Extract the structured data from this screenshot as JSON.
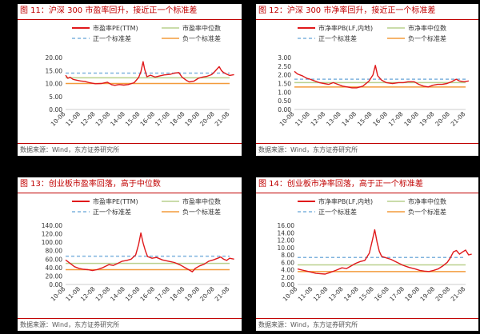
{
  "colors": {
    "series": "#e0191b",
    "median": "#b9d08d",
    "plus_sd": "#7fb3de",
    "minus_sd": "#f39b3c",
    "title": "#c00000"
  },
  "panels": [
    {
      "title": "图 11：沪深 300 市盈率回升，接近正一个标准差",
      "source": "数据来源：Wind，东方证券研究所"
    },
    {
      "title": "图 12：沪深 300 市净率回升，接近正一个标准差",
      "source": "数据来源：Wind，东方证券研究所"
    },
    {
      "title": "图 13：创业板市盈率回落，高于中位数",
      "source": "数据来源：Wind，东方证券研究所"
    },
    {
      "title": "图 14：创业板市净率回落，高于正一个标准差",
      "source": "数据来源：Wind，东方证券研究所"
    }
  ],
  "chart_data": [
    {
      "type": "line",
      "x": [
        "10-08",
        "11-08",
        "12-08",
        "13-08",
        "14-08",
        "15-08",
        "16-08",
        "17-08",
        "18-08",
        "19-08",
        "20-08",
        "21-08"
      ],
      "ylim": [
        0,
        20
      ],
      "yticks": [
        "0.00",
        "5.00",
        "10.00",
        "15.00",
        "20.00"
      ],
      "legend": [
        "市盈率PE(TTM)",
        "市盈率中位数",
        "正一个标准差",
        "负一个标准差"
      ],
      "series_points": [
        [
          0,
          13.2
        ],
        [
          0.15,
          12
        ],
        [
          0.3,
          12.4
        ],
        [
          0.5,
          11.6
        ],
        [
          0.8,
          11.2
        ],
        [
          1,
          11
        ],
        [
          1.3,
          10.8
        ],
        [
          1.6,
          10.3
        ],
        [
          2,
          9.9
        ],
        [
          2.4,
          10
        ],
        [
          2.8,
          10.5
        ],
        [
          3.1,
          9.5
        ],
        [
          3.3,
          9.3
        ],
        [
          3.6,
          9.6
        ],
        [
          3.9,
          9.4
        ],
        [
          4.2,
          9.6
        ],
        [
          4.6,
          10.3
        ],
        [
          4.9,
          12.3
        ],
        [
          5.05,
          14.5
        ],
        [
          5.2,
          18.4
        ],
        [
          5.3,
          15.5
        ],
        [
          5.45,
          12.6
        ],
        [
          5.7,
          13.2
        ],
        [
          6,
          12.5
        ],
        [
          6.3,
          12.9
        ],
        [
          6.6,
          13.3
        ],
        [
          7,
          13.5
        ],
        [
          7.3,
          14
        ],
        [
          7.6,
          14.2
        ],
        [
          7.8,
          12.5
        ],
        [
          8.1,
          11.2
        ],
        [
          8.3,
          10.6
        ],
        [
          8.6,
          10.9
        ],
        [
          8.9,
          12
        ],
        [
          9.2,
          12.5
        ],
        [
          9.5,
          12.8
        ],
        [
          9.8,
          13.4
        ],
        [
          10,
          14.6
        ],
        [
          10.3,
          16.5
        ],
        [
          10.45,
          15
        ],
        [
          10.6,
          14.2
        ],
        [
          10.8,
          13.6
        ],
        [
          11,
          13.1
        ],
        [
          11.3,
          13.4
        ]
      ],
      "median": 12.2,
      "plus_sd": 14.0,
      "minus_sd": 10.0
    },
    {
      "type": "line",
      "x": [
        "10-08",
        "11-08",
        "12-08",
        "13-08",
        "14-08",
        "15-08",
        "16-08",
        "17-08",
        "18-08",
        "19-08",
        "20-08",
        "21-08"
      ],
      "ylim": [
        0,
        3
      ],
      "yticks": [
        "0.00",
        "0.50",
        "1.00",
        "1.50",
        "2.00",
        "2.50",
        "3.00"
      ],
      "legend": [
        "市净率PB(LF,内地)",
        "市净率中位数",
        "正一个标准差",
        "负一个标准差"
      ],
      "series_points": [
        [
          0,
          2.2
        ],
        [
          0.2,
          2.05
        ],
        [
          0.5,
          1.95
        ],
        [
          0.8,
          1.8
        ],
        [
          1,
          1.75
        ],
        [
          1.3,
          1.65
        ],
        [
          1.6,
          1.55
        ],
        [
          1.9,
          1.5
        ],
        [
          2.2,
          1.45
        ],
        [
          2.5,
          1.55
        ],
        [
          2.8,
          1.45
        ],
        [
          3.1,
          1.35
        ],
        [
          3.4,
          1.3
        ],
        [
          3.7,
          1.25
        ],
        [
          4,
          1.25
        ],
        [
          4.4,
          1.35
        ],
        [
          4.8,
          1.65
        ],
        [
          5.05,
          2.0
        ],
        [
          5.2,
          2.55
        ],
        [
          5.35,
          1.95
        ],
        [
          5.6,
          1.7
        ],
        [
          5.9,
          1.55
        ],
        [
          6.3,
          1.5
        ],
        [
          6.7,
          1.55
        ],
        [
          7,
          1.55
        ],
        [
          7.3,
          1.6
        ],
        [
          7.7,
          1.6
        ],
        [
          8,
          1.45
        ],
        [
          8.3,
          1.35
        ],
        [
          8.6,
          1.3
        ],
        [
          8.9,
          1.4
        ],
        [
          9.2,
          1.45
        ],
        [
          9.5,
          1.45
        ],
        [
          9.8,
          1.5
        ],
        [
          10.1,
          1.6
        ],
        [
          10.4,
          1.75
        ],
        [
          10.6,
          1.65
        ],
        [
          10.9,
          1.6
        ],
        [
          11.2,
          1.65
        ]
      ],
      "median": 1.55,
      "plus_sd": 1.75,
      "minus_sd": 1.3
    },
    {
      "type": "line",
      "x": [
        "10-08",
        "11-08",
        "12-08",
        "13-08",
        "14-08",
        "15-08",
        "16-08",
        "17-08",
        "18-08",
        "19-08",
        "20-08",
        "21-08"
      ],
      "ylim": [
        0,
        140
      ],
      "yticks": [
        "0.00",
        "20.00",
        "40.00",
        "60.00",
        "80.00",
        "100.00",
        "120.00",
        "140.00"
      ],
      "legend": [
        "市盈率PE(TTM)",
        "市盈率中位数",
        "正一个标准差",
        "负一个标准差"
      ],
      "series_points": [
        [
          0,
          58
        ],
        [
          0.3,
          50
        ],
        [
          0.6,
          42
        ],
        [
          0.9,
          38
        ],
        [
          1.2,
          36
        ],
        [
          1.5,
          35
        ],
        [
          1.8,
          33
        ],
        [
          2.1,
          35
        ],
        [
          2.5,
          40
        ],
        [
          2.9,
          47
        ],
        [
          3.2,
          45
        ],
        [
          3.5,
          50
        ],
        [
          3.8,
          55
        ],
        [
          4.1,
          57
        ],
        [
          4.4,
          60
        ],
        [
          4.7,
          70
        ],
        [
          4.9,
          95
        ],
        [
          5.05,
          122
        ],
        [
          5.2,
          98
        ],
        [
          5.35,
          80
        ],
        [
          5.5,
          66
        ],
        [
          5.8,
          62
        ],
        [
          6.1,
          64
        ],
        [
          6.5,
          58
        ],
        [
          6.9,
          55
        ],
        [
          7.3,
          52
        ],
        [
          7.7,
          46
        ],
        [
          8,
          40
        ],
        [
          8.3,
          34
        ],
        [
          8.5,
          30
        ],
        [
          8.7,
          38
        ],
        [
          9,
          44
        ],
        [
          9.3,
          48
        ],
        [
          9.6,
          55
        ],
        [
          9.9,
          58
        ],
        [
          10.2,
          62
        ],
        [
          10.4,
          65
        ],
        [
          10.6,
          60
        ],
        [
          10.8,
          57
        ],
        [
          11,
          62
        ],
        [
          11.3,
          60
        ]
      ],
      "median": 50,
      "plus_sd": 67,
      "minus_sd": 35
    },
    {
      "type": "line",
      "x": [
        "10-08",
        "11-08",
        "12-08",
        "13-08",
        "14-08",
        "15-08",
        "16-08",
        "17-08",
        "18-08",
        "19-08",
        "20-08",
        "21-08"
      ],
      "ylim": [
        0,
        16
      ],
      "yticks": [
        "0.00",
        "2.00",
        "4.00",
        "6.00",
        "8.00",
        "10.00",
        "12.00",
        "14.00",
        "16.00"
      ],
      "legend": [
        "市净率PB(LF,内地)",
        "市净率中位数",
        "正一个标准差",
        "负一个标准差"
      ],
      "series_points": [
        [
          0,
          4.2
        ],
        [
          0.3,
          3.9
        ],
        [
          0.6,
          3.6
        ],
        [
          0.9,
          3.3
        ],
        [
          1.2,
          3.0
        ],
        [
          1.5,
          2.9
        ],
        [
          1.8,
          2.8
        ],
        [
          2.1,
          3.2
        ],
        [
          2.5,
          3.8
        ],
        [
          2.9,
          4.5
        ],
        [
          3.2,
          4.3
        ],
        [
          3.5,
          5
        ],
        [
          3.8,
          5.7
        ],
        [
          4.1,
          6.2
        ],
        [
          4.4,
          6.5
        ],
        [
          4.7,
          8.5
        ],
        [
          4.9,
          12
        ],
        [
          5.05,
          14.8
        ],
        [
          5.2,
          11.5
        ],
        [
          5.35,
          9
        ],
        [
          5.5,
          7.6
        ],
        [
          5.8,
          7.2
        ],
        [
          6.1,
          6.8
        ],
        [
          6.5,
          6.0
        ],
        [
          6.9,
          5.2
        ],
        [
          7.3,
          4.6
        ],
        [
          7.7,
          4.2
        ],
        [
          8,
          3.8
        ],
        [
          8.3,
          3.6
        ],
        [
          8.6,
          3.5
        ],
        [
          8.9,
          3.8
        ],
        [
          9.2,
          4.2
        ],
        [
          9.5,
          5
        ],
        [
          9.8,
          6
        ],
        [
          10,
          7.2
        ],
        [
          10.2,
          8.8
        ],
        [
          10.4,
          9.2
        ],
        [
          10.6,
          8.2
        ],
        [
          10.8,
          8.8
        ],
        [
          11,
          9.3
        ],
        [
          11.2,
          8
        ],
        [
          11.4,
          8.2
        ]
      ],
      "median": 5.3,
      "plus_sd": 7.3,
      "minus_sd": 3.5
    }
  ]
}
